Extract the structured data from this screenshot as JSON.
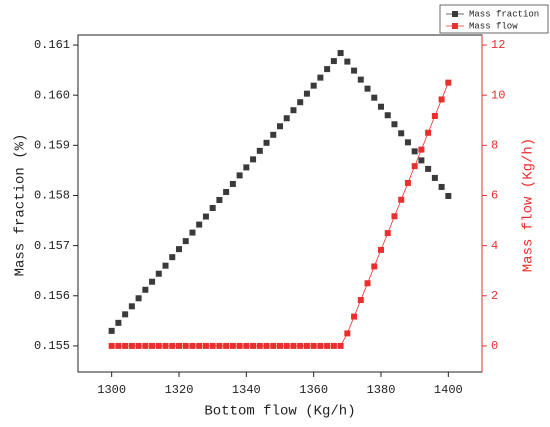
{
  "chart_data": {
    "type": "scatter",
    "xlabel": "Bottom flow (Kg/h)",
    "ylabel": "Mass fraction (%)",
    "y2label": "Mass flow (Kg/h)",
    "x": [
      1300,
      1302,
      1304,
      1306,
      1308,
      1310,
      1312,
      1314,
      1316,
      1318,
      1320,
      1322,
      1324,
      1326,
      1328,
      1330,
      1332,
      1334,
      1336,
      1338,
      1340,
      1342,
      1344,
      1346,
      1348,
      1350,
      1352,
      1354,
      1356,
      1358,
      1360,
      1362,
      1364,
      1366,
      1368,
      1370,
      1372,
      1374,
      1376,
      1378,
      1380,
      1382,
      1384,
      1386,
      1388,
      1390,
      1392,
      1394,
      1396,
      1398,
      1400
    ],
    "series": [
      {
        "name": "Mass fraction",
        "color": "#3a3a3a",
        "marker": "square",
        "line": false,
        "values": [
          0.1553,
          0.15546,
          0.15563,
          0.15579,
          0.15595,
          0.15612,
          0.15628,
          0.15644,
          0.1566,
          0.15677,
          0.15693,
          0.15709,
          0.15726,
          0.15742,
          0.15758,
          0.15775,
          0.15791,
          0.15807,
          0.15823,
          0.1584,
          0.15856,
          0.15872,
          0.15889,
          0.15905,
          0.15921,
          0.15938,
          0.15954,
          0.1597,
          0.15986,
          0.16003,
          0.16019,
          0.16035,
          0.16052,
          0.16068,
          0.16084,
          0.16067,
          0.16049,
          0.16031,
          0.16013,
          0.15995,
          0.15977,
          0.1596,
          0.15942,
          0.15924,
          0.15906,
          0.15888,
          0.1587,
          0.15853,
          0.15835,
          0.15817,
          0.15799
        ]
      },
      {
        "name": "Mass flow",
        "color": "#e8302f",
        "marker": "square",
        "line": true,
        "axis": "y2",
        "values": [
          0,
          0,
          0,
          0,
          0,
          0,
          0,
          0,
          0,
          0,
          0,
          0,
          0,
          0,
          0,
          0,
          0,
          0,
          0,
          0,
          0,
          0,
          0,
          0,
          0,
          0,
          0,
          0,
          0,
          0,
          0,
          0,
          0,
          0,
          0,
          0.5,
          1.17,
          1.83,
          2.5,
          3.17,
          3.83,
          4.5,
          5.17,
          5.83,
          6.5,
          7.17,
          7.83,
          8.5,
          9.17,
          9.83,
          10.5
        ]
      }
    ],
    "xlim": [
      1290,
      1410
    ],
    "xticks": [
      1300,
      1320,
      1340,
      1360,
      1380,
      1400
    ],
    "ylim": [
      0.15448,
      0.1612
    ],
    "yticks": [
      0.155,
      0.156,
      0.157,
      0.158,
      0.159,
      {
        "value": 0.16,
        "label": "0.160"
      },
      0.161
    ],
    "y2lim": [
      -1.04,
      12.4
    ],
    "y2ticks": [
      0,
      2,
      4,
      6,
      8,
      10,
      12
    ],
    "y2color": "#e8302f",
    "grid": false,
    "legend": "top-right"
  }
}
